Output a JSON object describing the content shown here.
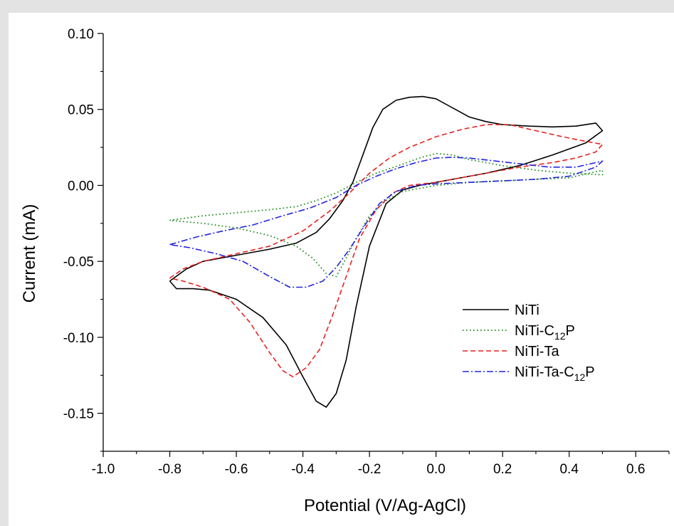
{
  "chart_data": {
    "type": "line",
    "title": "",
    "xlabel": "Potential (V/Ag-AgCl)",
    "ylabel": "Current (mA)",
    "xlim": [
      -1.0,
      0.7
    ],
    "ylim": [
      -0.175,
      0.1
    ],
    "x_ticks": [
      -1.0,
      -0.8,
      -0.6,
      -0.4,
      -0.2,
      0.0,
      0.2,
      0.4,
      0.6
    ],
    "x_tick_labels": [
      "-1.0",
      "-0.8",
      "-0.6",
      "-0.4",
      "-0.2",
      "0.0",
      "0.2",
      "0.4",
      "0.6"
    ],
    "y_ticks": [
      0.1,
      0.05,
      0.0,
      -0.05,
      -0.1,
      -0.15
    ],
    "y_tick_labels": [
      "0.10",
      "0.05",
      "0.00",
      "-0.05",
      "-0.10",
      "-0.15"
    ],
    "grid": false,
    "legend_position": "bottom-right",
    "series": [
      {
        "name": "NiTi",
        "label_main": "NiTi",
        "label_sub": "",
        "label_tail": "",
        "color": "#000000",
        "dash": "solid",
        "points": [
          [
            -0.8,
            -0.063
          ],
          [
            -0.75,
            -0.055
          ],
          [
            -0.7,
            -0.05
          ],
          [
            -0.6,
            -0.046
          ],
          [
            -0.5,
            -0.042
          ],
          [
            -0.42,
            -0.038
          ],
          [
            -0.36,
            -0.031
          ],
          [
            -0.32,
            -0.022
          ],
          [
            -0.28,
            -0.01
          ],
          [
            -0.25,
            0.002
          ],
          [
            -0.22,
            0.02
          ],
          [
            -0.19,
            0.038
          ],
          [
            -0.16,
            0.05
          ],
          [
            -0.12,
            0.056
          ],
          [
            -0.08,
            0.058
          ],
          [
            -0.04,
            0.0585
          ],
          [
            0.0,
            0.057
          ],
          [
            0.05,
            0.051
          ],
          [
            0.1,
            0.045
          ],
          [
            0.15,
            0.042
          ],
          [
            0.2,
            0.04
          ],
          [
            0.28,
            0.039
          ],
          [
            0.35,
            0.0385
          ],
          [
            0.42,
            0.039
          ],
          [
            0.48,
            0.041
          ],
          [
            0.5,
            0.036
          ],
          [
            0.45,
            0.028
          ],
          [
            0.35,
            0.02
          ],
          [
            0.25,
            0.013
          ],
          [
            0.15,
            0.008
          ],
          [
            0.05,
            0.004
          ],
          [
            0.0,
            0.002
          ],
          [
            -0.05,
            0.0
          ],
          [
            -0.1,
            -0.003
          ],
          [
            -0.15,
            -0.012
          ],
          [
            -0.2,
            -0.04
          ],
          [
            -0.24,
            -0.08
          ],
          [
            -0.27,
            -0.115
          ],
          [
            -0.3,
            -0.137
          ],
          [
            -0.33,
            -0.146
          ],
          [
            -0.36,
            -0.142
          ],
          [
            -0.4,
            -0.126
          ],
          [
            -0.45,
            -0.105
          ],
          [
            -0.52,
            -0.087
          ],
          [
            -0.6,
            -0.075
          ],
          [
            -0.68,
            -0.069
          ],
          [
            -0.73,
            -0.068
          ],
          [
            -0.78,
            -0.068
          ],
          [
            -0.8,
            -0.063
          ]
        ]
      },
      {
        "name": "NiTi-C12P",
        "label_main": "NiTi-C",
        "label_sub": "12",
        "label_tail": "P",
        "color": "#1a8c1a",
        "dash": "dotted",
        "points": [
          [
            -0.8,
            -0.023
          ],
          [
            -0.7,
            -0.02
          ],
          [
            -0.6,
            -0.018
          ],
          [
            -0.5,
            -0.016
          ],
          [
            -0.42,
            -0.014
          ],
          [
            -0.36,
            -0.01
          ],
          [
            -0.3,
            -0.005
          ],
          [
            -0.24,
            0.002
          ],
          [
            -0.18,
            0.008
          ],
          [
            -0.1,
            0.014
          ],
          [
            -0.05,
            0.018
          ],
          [
            0.0,
            0.021
          ],
          [
            0.05,
            0.02
          ],
          [
            0.1,
            0.017
          ],
          [
            0.2,
            0.013
          ],
          [
            0.3,
            0.01
          ],
          [
            0.4,
            0.008
          ],
          [
            0.5,
            0.007
          ],
          [
            0.5,
            0.01
          ],
          [
            0.4,
            0.005
          ],
          [
            0.3,
            0.004
          ],
          [
            0.2,
            0.003
          ],
          [
            0.1,
            0.002
          ],
          [
            0.0,
            0.0
          ],
          [
            -0.05,
            -0.002
          ],
          [
            -0.1,
            -0.004
          ],
          [
            -0.15,
            -0.01
          ],
          [
            -0.2,
            -0.02
          ],
          [
            -0.24,
            -0.035
          ],
          [
            -0.28,
            -0.052
          ],
          [
            -0.3,
            -0.06
          ],
          [
            -0.33,
            -0.058
          ],
          [
            -0.37,
            -0.048
          ],
          [
            -0.42,
            -0.04
          ],
          [
            -0.5,
            -0.033
          ],
          [
            -0.6,
            -0.028
          ],
          [
            -0.7,
            -0.025
          ],
          [
            -0.8,
            -0.023
          ]
        ]
      },
      {
        "name": "NiTi-Ta",
        "label_main": "NiTi-Ta",
        "label_sub": "",
        "label_tail": "",
        "color": "#e8221e",
        "dash": "dashed",
        "points": [
          [
            -0.8,
            -0.061
          ],
          [
            -0.76,
            -0.055
          ],
          [
            -0.7,
            -0.05
          ],
          [
            -0.6,
            -0.045
          ],
          [
            -0.5,
            -0.04
          ],
          [
            -0.4,
            -0.03
          ],
          [
            -0.32,
            -0.017
          ],
          [
            -0.26,
            -0.005
          ],
          [
            -0.2,
            0.008
          ],
          [
            -0.14,
            0.018
          ],
          [
            -0.08,
            0.025
          ],
          [
            0.0,
            0.032
          ],
          [
            0.08,
            0.037
          ],
          [
            0.15,
            0.04
          ],
          [
            0.22,
            0.04
          ],
          [
            0.3,
            0.036
          ],
          [
            0.38,
            0.032
          ],
          [
            0.45,
            0.029
          ],
          [
            0.5,
            0.027
          ],
          [
            0.48,
            0.022
          ],
          [
            0.42,
            0.018
          ],
          [
            0.35,
            0.015
          ],
          [
            0.25,
            0.012
          ],
          [
            0.15,
            0.008
          ],
          [
            0.05,
            0.004
          ],
          [
            0.0,
            0.002
          ],
          [
            -0.08,
            0.0
          ],
          [
            -0.13,
            -0.005
          ],
          [
            -0.18,
            -0.016
          ],
          [
            -0.23,
            -0.035
          ],
          [
            -0.27,
            -0.06
          ],
          [
            -0.31,
            -0.085
          ],
          [
            -0.35,
            -0.108
          ],
          [
            -0.39,
            -0.12
          ],
          [
            -0.43,
            -0.126
          ],
          [
            -0.46,
            -0.122
          ],
          [
            -0.5,
            -0.11
          ],
          [
            -0.56,
            -0.09
          ],
          [
            -0.62,
            -0.075
          ],
          [
            -0.7,
            -0.067
          ],
          [
            -0.76,
            -0.063
          ],
          [
            -0.8,
            -0.061
          ]
        ]
      },
      {
        "name": "NiTi-Ta-C12P",
        "label_main": "NiTi-Ta-C",
        "label_sub": "12",
        "label_tail": "P",
        "color": "#2323e0",
        "dash": "dashdot",
        "points": [
          [
            -0.8,
            -0.039
          ],
          [
            -0.72,
            -0.034
          ],
          [
            -0.64,
            -0.03
          ],
          [
            -0.55,
            -0.026
          ],
          [
            -0.46,
            -0.02
          ],
          [
            -0.38,
            -0.015
          ],
          [
            -0.3,
            -0.008
          ],
          [
            -0.24,
            0.0
          ],
          [
            -0.18,
            0.006
          ],
          [
            -0.12,
            0.011
          ],
          [
            -0.06,
            0.015
          ],
          [
            0.0,
            0.018
          ],
          [
            0.05,
            0.0185
          ],
          [
            0.1,
            0.018
          ],
          [
            0.18,
            0.016
          ],
          [
            0.26,
            0.014
          ],
          [
            0.34,
            0.012
          ],
          [
            0.42,
            0.012
          ],
          [
            0.5,
            0.016
          ],
          [
            0.48,
            0.012
          ],
          [
            0.4,
            0.006
          ],
          [
            0.3,
            0.004
          ],
          [
            0.2,
            0.003
          ],
          [
            0.1,
            0.002
          ],
          [
            0.0,
            0.001
          ],
          [
            -0.06,
            0.0
          ],
          [
            -0.12,
            -0.004
          ],
          [
            -0.17,
            -0.012
          ],
          [
            -0.21,
            -0.025
          ],
          [
            -0.26,
            -0.042
          ],
          [
            -0.3,
            -0.054
          ],
          [
            -0.34,
            -0.063
          ],
          [
            -0.39,
            -0.067
          ],
          [
            -0.44,
            -0.067
          ],
          [
            -0.5,
            -0.06
          ],
          [
            -0.58,
            -0.05
          ],
          [
            -0.66,
            -0.045
          ],
          [
            -0.74,
            -0.041
          ],
          [
            -0.8,
            -0.039
          ]
        ]
      }
    ]
  }
}
